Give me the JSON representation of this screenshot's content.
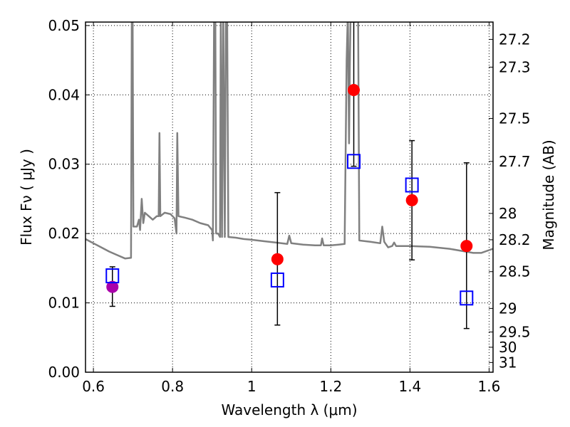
{
  "chart_data": {
    "type": "scatter",
    "xlabel": "Wavelength  λ (μm)",
    "ylabel": "Flux  Fν  ( μJy )",
    "y2label": "Magnitude (AB)",
    "xlim": [
      0.58,
      1.61
    ],
    "ylim": [
      0.0,
      0.0505
    ],
    "xticks": [
      0.6,
      0.8,
      1.0,
      1.2,
      1.4,
      1.6
    ],
    "xtick_labels": [
      "0.6",
      "0.8",
      "1",
      "1.2",
      "1.4",
      "1.6"
    ],
    "yticks": [
      0.0,
      0.01,
      0.02,
      0.03,
      0.04,
      0.05
    ],
    "ytick_labels": [
      "0.00",
      "0.01",
      "0.02",
      "0.03",
      "0.04",
      "0.05"
    ],
    "y2_ticks": [
      {
        "label": "27.2",
        "flux": 0.048
      },
      {
        "label": "27.3",
        "flux": 0.044
      },
      {
        "label": "27.5",
        "flux": 0.0366
      },
      {
        "label": "27.7",
        "flux": 0.0304
      },
      {
        "label": "28",
        "flux": 0.0229
      },
      {
        "label": "28.2",
        "flux": 0.0191
      },
      {
        "label": "28.5",
        "flux": 0.0145
      },
      {
        "label": "29",
        "flux": 0.0092
      },
      {
        "label": "29.5",
        "flux": 0.0058
      },
      {
        "label": "30",
        "flux": 0.0036
      },
      {
        "label": "31",
        "flux": 0.0014
      }
    ],
    "grid": true,
    "series": [
      {
        "marker": "circle",
        "color": "#ff0000",
        "points": [
          {
            "x": 1.065,
            "y": 0.0163
          },
          {
            "x": 1.258,
            "y": 0.0407
          },
          {
            "x": 1.405,
            "y": 0.0248
          },
          {
            "x": 1.543,
            "y": 0.0182
          }
        ]
      },
      {
        "marker": "circle",
        "color": "#aa00aa",
        "points": [
          {
            "x": 0.648,
            "y": 0.0123
          }
        ]
      },
      {
        "marker": "open-square",
        "color": "#0000ff",
        "points": [
          {
            "x": 0.648,
            "y": 0.0139,
            "yerr_low": 0.0095,
            "yerr_high": 0.0152
          },
          {
            "x": 1.065,
            "y": 0.0133,
            "yerr_low": 0.0068,
            "yerr_high": 0.0259
          },
          {
            "x": 1.258,
            "y": 0.0304,
            "yerr_low": 0.0297,
            "yerr_high": 0.0505
          },
          {
            "x": 1.405,
            "y": 0.027,
            "yerr_low": 0.0162,
            "yerr_high": 0.0334
          },
          {
            "x": 1.543,
            "y": 0.0107,
            "yerr_low": 0.0063,
            "yerr_high": 0.0302
          }
        ]
      },
      {
        "marker": "line",
        "color": "#808080",
        "points": [
          [
            0.58,
            0.0192
          ],
          [
            0.6,
            0.0186
          ],
          [
            0.62,
            0.018
          ],
          [
            0.64,
            0.0174
          ],
          [
            0.66,
            0.0169
          ],
          [
            0.68,
            0.0164
          ],
          [
            0.695,
            0.0165
          ],
          [
            0.697,
            0.052
          ],
          [
            0.699,
            0.052
          ],
          [
            0.701,
            0.021
          ],
          [
            0.71,
            0.021
          ],
          [
            0.715,
            0.022
          ],
          [
            0.718,
            0.0205
          ],
          [
            0.722,
            0.025
          ],
          [
            0.726,
            0.0215
          ],
          [
            0.73,
            0.023
          ],
          [
            0.74,
            0.0225
          ],
          [
            0.75,
            0.022
          ],
          [
            0.76,
            0.0225
          ],
          [
            0.765,
            0.0225
          ],
          [
            0.767,
            0.0345
          ],
          [
            0.769,
            0.0225
          ],
          [
            0.78,
            0.023
          ],
          [
            0.795,
            0.0228
          ],
          [
            0.805,
            0.0222
          ],
          [
            0.81,
            0.02
          ],
          [
            0.812,
            0.0345
          ],
          [
            0.815,
            0.0225
          ],
          [
            0.83,
            0.0223
          ],
          [
            0.85,
            0.022
          ],
          [
            0.87,
            0.0215
          ],
          [
            0.89,
            0.0212
          ],
          [
            0.9,
            0.0205
          ],
          [
            0.902,
            0.019
          ],
          [
            0.905,
            0.052
          ],
          [
            0.908,
            0.052
          ],
          [
            0.91,
            0.02
          ],
          [
            0.915,
            0.02
          ],
          [
            0.92,
            0.0195
          ],
          [
            0.922,
            0.052
          ],
          [
            0.925,
            0.0195
          ],
          [
            0.928,
            0.052
          ],
          [
            0.932,
            0.0195
          ],
          [
            0.935,
            0.052
          ],
          [
            0.938,
            0.052
          ],
          [
            0.941,
            0.0195
          ],
          [
            0.96,
            0.0194
          ],
          [
            0.98,
            0.0192
          ],
          [
            1.0,
            0.0191
          ],
          [
            1.03,
            0.0189
          ],
          [
            1.06,
            0.0187
          ],
          [
            1.09,
            0.0185
          ],
          [
            1.095,
            0.0197
          ],
          [
            1.1,
            0.0186
          ],
          [
            1.13,
            0.0184
          ],
          [
            1.16,
            0.0183
          ],
          [
            1.175,
            0.0183
          ],
          [
            1.178,
            0.0193
          ],
          [
            1.182,
            0.0183
          ],
          [
            1.2,
            0.0183
          ],
          [
            1.22,
            0.0184
          ],
          [
            1.235,
            0.0185
          ],
          [
            1.24,
            0.045
          ],
          [
            1.243,
            0.052
          ],
          [
            1.246,
            0.033
          ],
          [
            1.248,
            0.044
          ],
          [
            1.25,
            0.052
          ],
          [
            1.262,
            0.052
          ],
          [
            1.266,
            0.052
          ],
          [
            1.269,
            0.052
          ],
          [
            1.272,
            0.019
          ],
          [
            1.3,
            0.0188
          ],
          [
            1.325,
            0.0186
          ],
          [
            1.33,
            0.021
          ],
          [
            1.335,
            0.0188
          ],
          [
            1.345,
            0.018
          ],
          [
            1.355,
            0.0182
          ],
          [
            1.36,
            0.0187
          ],
          [
            1.365,
            0.0182
          ],
          [
            1.4,
            0.0182
          ],
          [
            1.45,
            0.0181
          ],
          [
            1.5,
            0.0178
          ],
          [
            1.53,
            0.0175
          ],
          [
            1.56,
            0.0172
          ],
          [
            1.58,
            0.0172
          ],
          [
            1.6,
            0.0176
          ],
          [
            1.61,
            0.0178
          ]
        ]
      }
    ]
  }
}
